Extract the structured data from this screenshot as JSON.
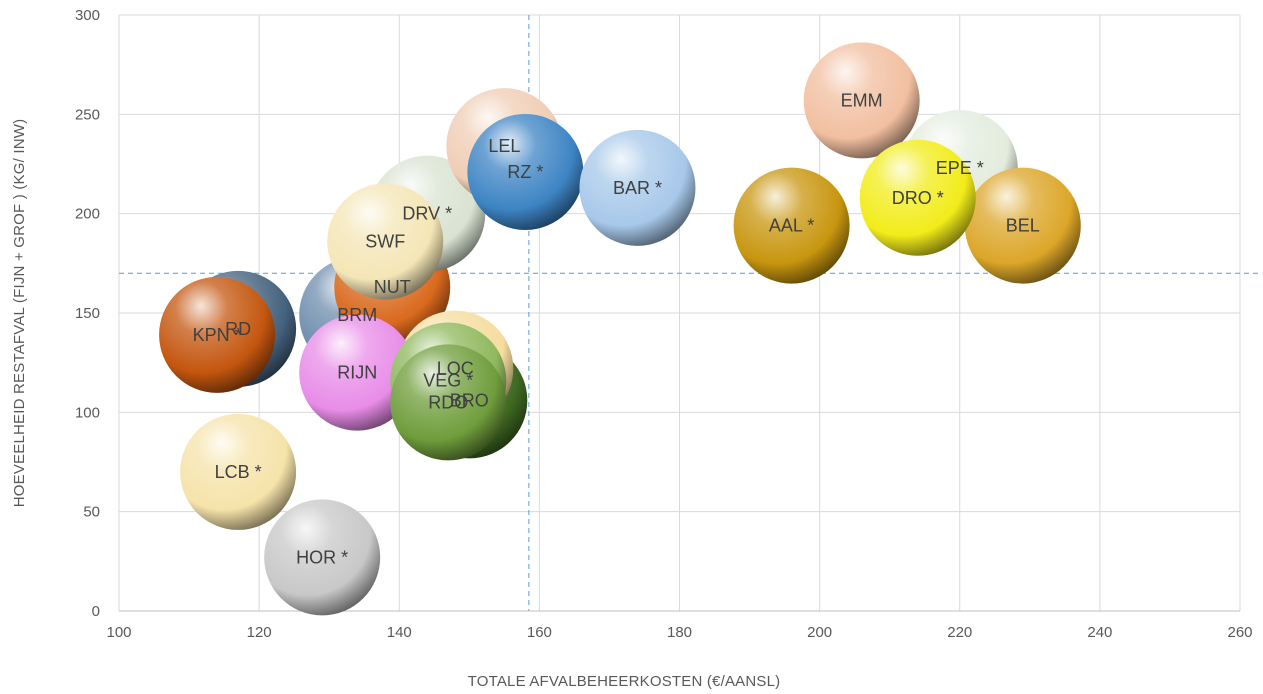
{
  "chart_data": {
    "type": "scatter",
    "title": "",
    "xlabel": "TOTALE AFVALBEHEERKOSTEN (€/AANSL)",
    "ylabel": "HOEVEELHEID RESTAFVAL (FIJN + GROF )   (KG/ INW)",
    "xlim": [
      100,
      260
    ],
    "ylim": [
      0,
      300
    ],
    "x_ticks": [
      100,
      120,
      140,
      160,
      180,
      200,
      220,
      240,
      260
    ],
    "y_ticks": [
      0,
      50,
      100,
      150,
      200,
      250,
      300
    ],
    "grid": true,
    "reference_lines": {
      "x": 158.5,
      "y": 170
    },
    "points": [
      {
        "label": "RD",
        "x": 117,
        "y": 142,
        "color": "#44617e"
      },
      {
        "label": "KPN *",
        "x": 114,
        "y": 139,
        "color": "#c4560f"
      },
      {
        "label": "BRO",
        "x": 150,
        "y": 106,
        "color": "#3f6a22"
      },
      {
        "label": "BRM",
        "x": 134,
        "y": 149,
        "color": "#6f8eae"
      },
      {
        "label": "NUT",
        "x": 139,
        "y": 163,
        "color": "#d9691d"
      },
      {
        "label": "DRV *",
        "x": 144,
        "y": 200,
        "color": "#d9e3d2"
      },
      {
        "label": "LEL",
        "x": 155,
        "y": 234,
        "color": "#f0cdb5"
      },
      {
        "label": "SWF",
        "x": 138,
        "y": 186,
        "color": "#f4e6b6"
      },
      {
        "label": "RZ *",
        "x": 158,
        "y": 221,
        "color": "#3d84c4"
      },
      {
        "label": "BAR *",
        "x": 174,
        "y": 213,
        "color": "#a7c8ea"
      },
      {
        "label": "LOC",
        "x": 148,
        "y": 122,
        "color": "#f6dc9e"
      },
      {
        "label": "RIJN",
        "x": 134,
        "y": 120,
        "color": "#e88ce8"
      },
      {
        "label": "VEG *",
        "x": 147,
        "y": 116,
        "color": "#8fb85e"
      },
      {
        "label": "RDO",
        "x": 147,
        "y": 105,
        "color": "#6f9d3b"
      },
      {
        "label": "LCB *",
        "x": 117,
        "y": 70,
        "color": "#f6e3aa"
      },
      {
        "label": "HOR *",
        "x": 129,
        "y": 27,
        "color": "#c8c8c8"
      },
      {
        "label": "EMM",
        "x": 206,
        "y": 257,
        "color": "#f2bfa0"
      },
      {
        "label": "EPE *",
        "x": 220,
        "y": 223,
        "color": "#e3ecdd"
      },
      {
        "label": "BEL",
        "x": 229,
        "y": 194,
        "color": "#dca628"
      },
      {
        "label": "AAL *",
        "x": 196,
        "y": 194,
        "color": "#c8960f"
      },
      {
        "label": "DRO *",
        "x": 214,
        "y": 208,
        "color": "#f2ec1a"
      }
    ]
  }
}
